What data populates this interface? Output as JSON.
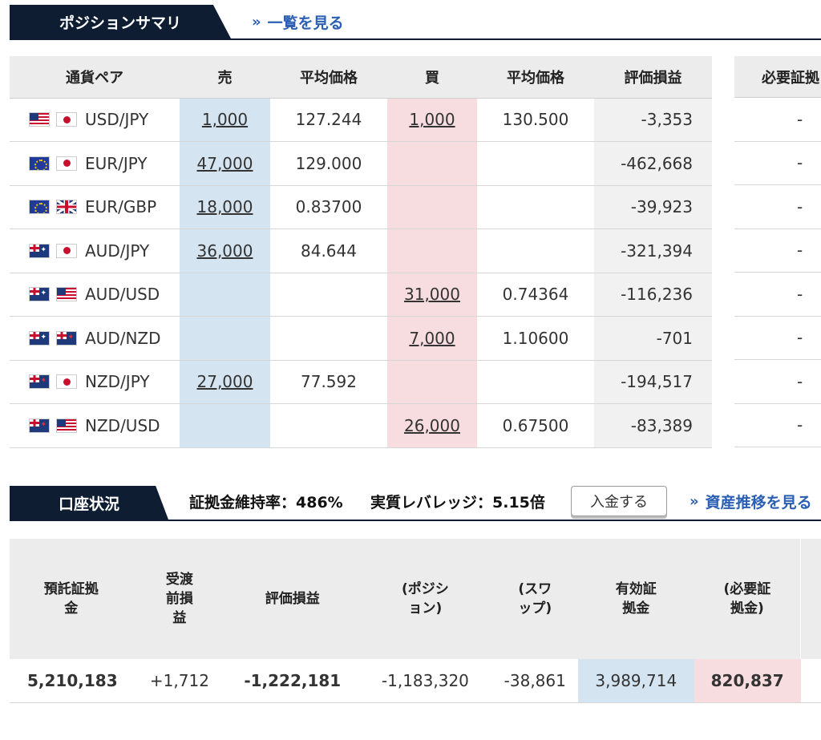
{
  "position_summary": {
    "tab_label": "ポジションサマリ",
    "link_label": "一覧を見る",
    "columns": [
      "通貨ペア",
      "売",
      "平均価格",
      "買",
      "平均価格",
      "評価損益"
    ],
    "margin_column_label": "必要証拠",
    "rows": [
      {
        "pair": "USD/JPY",
        "flags": [
          "us",
          "jp"
        ],
        "sell": "1,000",
        "sell_avg": "127.244",
        "buy": "1,000",
        "buy_avg": "130.500",
        "pl": "-3,353",
        "margin": "-"
      },
      {
        "pair": "EUR/JPY",
        "flags": [
          "eu",
          "jp"
        ],
        "sell": "47,000",
        "sell_avg": "129.000",
        "buy": "",
        "buy_avg": "",
        "pl": "-462,668",
        "margin": "-"
      },
      {
        "pair": "EUR/GBP",
        "flags": [
          "eu",
          "gb"
        ],
        "sell": "18,000",
        "sell_avg": "0.83700",
        "buy": "",
        "buy_avg": "",
        "pl": "-39,923",
        "margin": "-"
      },
      {
        "pair": "AUD/JPY",
        "flags": [
          "au",
          "jp"
        ],
        "sell": "36,000",
        "sell_avg": "84.644",
        "buy": "",
        "buy_avg": "",
        "pl": "-321,394",
        "margin": "-"
      },
      {
        "pair": "AUD/USD",
        "flags": [
          "au",
          "us"
        ],
        "sell": "",
        "sell_avg": "",
        "buy": "31,000",
        "buy_avg": "0.74364",
        "pl": "-116,236",
        "margin": "-"
      },
      {
        "pair": "AUD/NZD",
        "flags": [
          "au",
          "nz"
        ],
        "sell": "",
        "sell_avg": "",
        "buy": "7,000",
        "buy_avg": "1.10600",
        "pl": "-701",
        "margin": "-"
      },
      {
        "pair": "NZD/JPY",
        "flags": [
          "nz",
          "jp"
        ],
        "sell": "27,000",
        "sell_avg": "77.592",
        "buy": "",
        "buy_avg": "",
        "pl": "-194,517",
        "margin": "-"
      },
      {
        "pair": "NZD/USD",
        "flags": [
          "nz",
          "us"
        ],
        "sell": "",
        "sell_avg": "",
        "buy": "26,000",
        "buy_avg": "0.67500",
        "pl": "-83,389",
        "margin": "-"
      }
    ]
  },
  "account": {
    "tab_label": "口座状況",
    "margin_ratio": "証拠金維持率：486%",
    "leverage": "実質レバレッジ：5.15倍",
    "deposit_button": "入金する",
    "asset_link": "資産推移を見る",
    "columns": [
      [
        "預託証拠",
        "金"
      ],
      [
        "受渡",
        "前損",
        "益"
      ],
      [
        "評価損益"
      ],
      [
        "(ポジシ",
        "ョン)"
      ],
      [
        "(スワ",
        "ップ)"
      ],
      [
        "有効証",
        "拠金"
      ],
      [
        "(必要証",
        "拠金)"
      ]
    ],
    "values": [
      "5,210,183",
      "+1,712",
      "-1,222,181",
      "-1,183,320",
      "-38,861",
      "3,989,714",
      "820,837"
    ]
  },
  "colors": {
    "navy": "#0f1d33",
    "link": "#2a5fb4",
    "sell_bg": "#d4e4f1",
    "buy_bg": "#f7dde0"
  }
}
